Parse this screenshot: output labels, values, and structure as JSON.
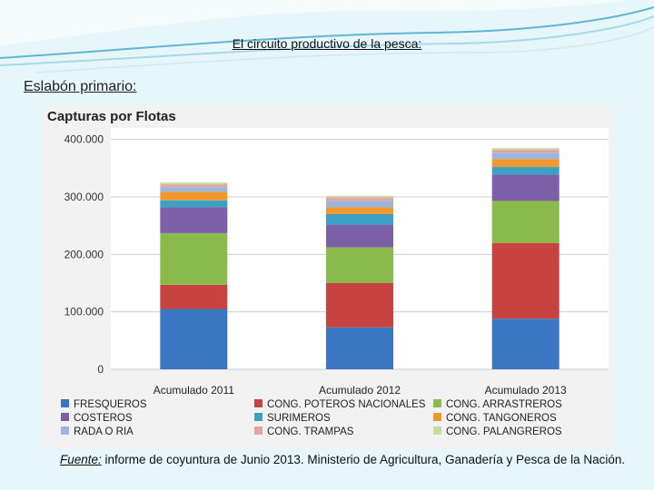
{
  "slide": {
    "title": "El circuito productivo de la pesca:",
    "subtitle": "Eslabón primario:",
    "source_label": "Fuente:",
    "source_text": " informe de coyuntura de Junio 2013. Ministerio de Agricultura, Ganadería y Pesca de la Nación."
  },
  "chart_data": {
    "type": "bar",
    "stacked": true,
    "title": "Capturas por Flotas",
    "categories": [
      "Acumulado 2011",
      "Acumulado 2012",
      "Acumulado 2013"
    ],
    "ylim": [
      0,
      420000
    ],
    "yticks": [
      0,
      100000,
      200000,
      300000,
      400000
    ],
    "ytick_labels": [
      "0",
      "100.000",
      "200.000",
      "300.000",
      "400.000"
    ],
    "grid": true,
    "legend_position": "bottom",
    "series": [
      {
        "name": "FRESQUEROS",
        "color": "#3a76c2",
        "values": [
          105000,
          73000,
          88000
        ]
      },
      {
        "name": "CONG. POTEROS NACIONALES",
        "color": "#c6433f",
        "values": [
          42000,
          77000,
          132000
        ]
      },
      {
        "name": "CONG. ARRASTREROS",
        "color": "#8ab94c",
        "values": [
          90000,
          62000,
          73000
        ]
      },
      {
        "name": "COSTEROS",
        "color": "#7b60a8",
        "values": [
          45000,
          40000,
          46000
        ]
      },
      {
        "name": "SURIMEROS",
        "color": "#3aa0c4",
        "values": [
          12000,
          18000,
          13000
        ]
      },
      {
        "name": "CONG. TANGONEROS",
        "color": "#f1972f",
        "values": [
          15000,
          12000,
          14000
        ]
      },
      {
        "name": "RADA O RIA",
        "color": "#9cb5dc",
        "values": [
          8000,
          11000,
          11000
        ]
      },
      {
        "name": "CONG. TRAMPAS",
        "color": "#e2a6a5",
        "values": [
          5000,
          6000,
          5000
        ]
      },
      {
        "name": "CONG. PALANGREROS",
        "color": "#c5db9f",
        "values": [
          3000,
          3000,
          3000
        ]
      }
    ]
  }
}
